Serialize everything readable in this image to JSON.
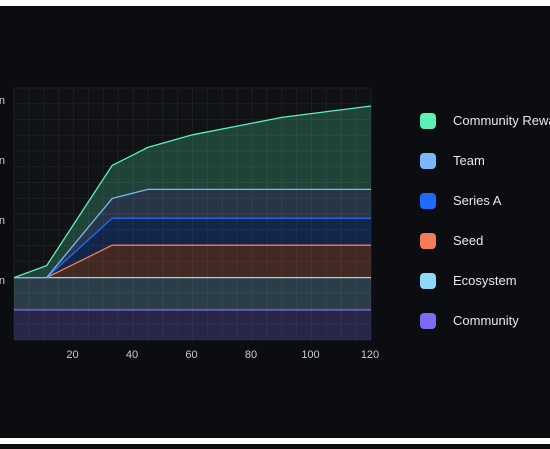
{
  "chart_data": {
    "type": "area",
    "stacked": true,
    "xlabel": "",
    "ylabel": "",
    "xlim": [
      0,
      120
    ],
    "ylim": [
      0,
      4.2
    ],
    "x_ticks": [
      20,
      40,
      60,
      80,
      100,
      120
    ],
    "y_tick_labels": [
      "n",
      "n",
      "n",
      "n"
    ],
    "y_tick_values": [
      1,
      2,
      3,
      4
    ],
    "grid": true,
    "legend_position": "right",
    "series": [
      {
        "name": "Community",
        "color": "#7b6cf6",
        "x": [
          0,
          120
        ],
        "y": [
          0.5,
          0.5
        ]
      },
      {
        "name": "Ecosystem",
        "color": "#8fd8f8",
        "x": [
          0,
          120
        ],
        "y": [
          0.54,
          0.54
        ]
      },
      {
        "name": "Seed",
        "color": "#f47c5a",
        "x": [
          0,
          11,
          33,
          120
        ],
        "y": [
          0,
          0,
          0.54,
          0.54
        ]
      },
      {
        "name": "Series A",
        "color": "#1f6bff",
        "x": [
          0,
          11,
          33,
          120
        ],
        "y": [
          0,
          0,
          0.45,
          0.45
        ]
      },
      {
        "name": "Team",
        "color": "#7cb6fa",
        "x": [
          0,
          11,
          33,
          45,
          120
        ],
        "y": [
          0,
          0,
          0.33,
          0.48,
          0.48
        ]
      },
      {
        "name": "Community Rewards",
        "color": "#5cf0b8",
        "x": [
          0,
          11,
          33,
          45,
          60,
          90,
          120
        ],
        "y": [
          0,
          0.2,
          0.55,
          0.7,
          0.91,
          1.2,
          1.39
        ]
      }
    ]
  },
  "legend": {
    "items": [
      {
        "label": "Community Rewards",
        "color": "#5cf0b8"
      },
      {
        "label": "Team",
        "color": "#7cb6fa"
      },
      {
        "label": "Series A",
        "color": "#1f6bff"
      },
      {
        "label": "Seed",
        "color": "#f47c5a"
      },
      {
        "label": "Ecosystem",
        "color": "#8fd8f8"
      },
      {
        "label": "Community",
        "color": "#7b6cf6"
      }
    ]
  }
}
